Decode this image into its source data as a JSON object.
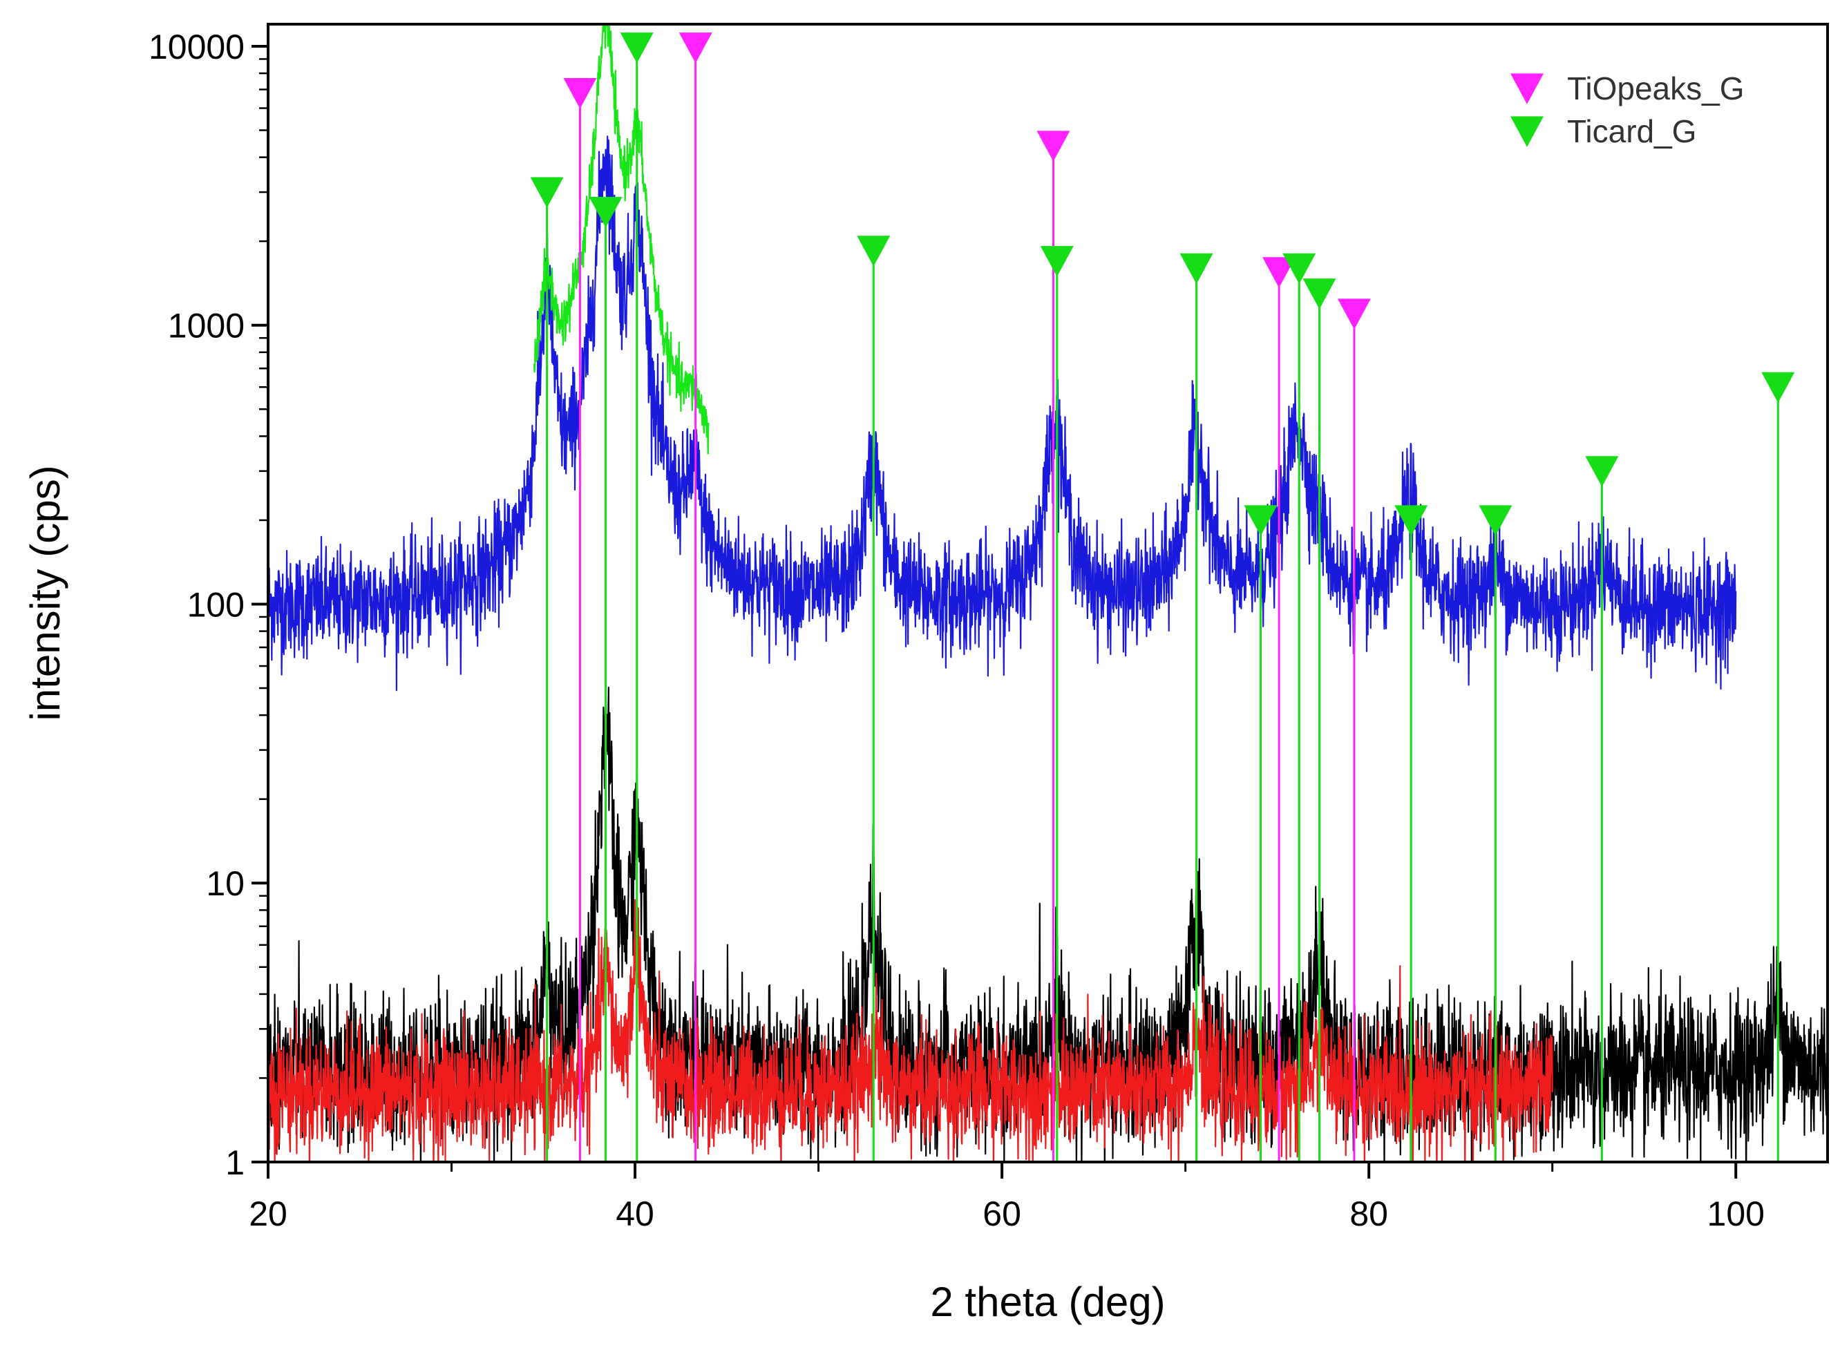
{
  "chart_data": {
    "type": "line",
    "title": "",
    "xlabel": "2 theta (deg)",
    "ylabel": "intensity (cps)",
    "xlim": [
      20,
      105
    ],
    "ylim": [
      1,
      12000
    ],
    "yscale": "log",
    "x_ticks": [
      20,
      40,
      60,
      80,
      100
    ],
    "x_minor_ticks": [
      30,
      50,
      70,
      90
    ],
    "y_ticks": [
      1,
      10,
      100,
      1000,
      10000
    ],
    "grid": false,
    "legend_position": "top-right",
    "colors": {
      "blue": "#1a1adc",
      "green": "#19e619",
      "black": "#000000",
      "red": "#ee1c1c",
      "magenta": "#ff22ff",
      "marker_green": "#16dd16"
    },
    "series": [
      {
        "name": "blue pattern",
        "color": "#1a1adc",
        "x_range": [
          20,
          100
        ],
        "baseline": 95,
        "noise": 0.22,
        "peaks": [
          [
            35.2,
            1250,
            0.35
          ],
          [
            36.6,
            120,
            0.4
          ],
          [
            38.4,
            3800,
            0.45
          ],
          [
            40.1,
            2100,
            0.45
          ],
          [
            43.2,
            240,
            0.4
          ],
          [
            53.0,
            310,
            0.45
          ],
          [
            62.9,
            450,
            0.5
          ],
          [
            70.6,
            380,
            0.55
          ],
          [
            76.1,
            430,
            0.6
          ],
          [
            77.3,
            140,
            0.45
          ],
          [
            82.2,
            240,
            0.5
          ],
          [
            86.9,
            130,
            0.6
          ],
          [
            92.7,
            140,
            0.6
          ]
        ]
      },
      {
        "name": "green pattern",
        "color": "#19e619",
        "x_range": [
          34.5,
          44
        ],
        "baseline": 250,
        "noise": 0.1,
        "peaks": [
          [
            35.2,
            1250,
            0.45
          ],
          [
            36.7,
            480,
            0.5
          ],
          [
            38.4,
            12000,
            0.45
          ],
          [
            40.1,
            4300,
            0.5
          ],
          [
            43.2,
            390,
            0.5
          ]
        ]
      },
      {
        "name": "black pattern",
        "color": "#000000",
        "x_range": [
          20,
          105
        ],
        "baseline": 2.1,
        "noise": 0.3,
        "peaks": [
          [
            35.2,
            5,
            0.25
          ],
          [
            38.4,
            35,
            0.3
          ],
          [
            40.1,
            16,
            0.3
          ],
          [
            53.0,
            8,
            0.3
          ],
          [
            62.9,
            4,
            0.3
          ],
          [
            70.6,
            8,
            0.3
          ],
          [
            76.1,
            3,
            0.3
          ],
          [
            77.3,
            6,
            0.3
          ],
          [
            102.3,
            3.5,
            0.4
          ]
        ]
      },
      {
        "name": "red pattern",
        "color": "#ee1c1c",
        "x_range": [
          20,
          90
        ],
        "baseline": 1.8,
        "noise": 0.24,
        "peaks": [
          [
            38.4,
            5,
            0.3
          ],
          [
            40.1,
            5.5,
            0.3
          ],
          [
            53.0,
            2.8,
            0.3
          ],
          [
            70.6,
            3,
            0.3
          ],
          [
            77.3,
            2.8,
            0.3
          ]
        ]
      }
    ],
    "reference_markers": [
      {
        "name": "TiOpeaks_G",
        "color": "#ff22ff",
        "points": [
          [
            37.0,
            6800
          ],
          [
            43.3,
            9900
          ],
          [
            62.8,
            4400
          ],
          [
            75.1,
            1550
          ],
          [
            79.2,
            1100
          ]
        ]
      },
      {
        "name": "Ticard_G",
        "color": "#16dd16",
        "points": [
          [
            35.2,
            3000
          ],
          [
            38.4,
            2550
          ],
          [
            40.1,
            9900
          ],
          [
            53.0,
            1850
          ],
          [
            63.0,
            1700
          ],
          [
            70.6,
            1600
          ],
          [
            74.1,
            200
          ],
          [
            76.2,
            1600
          ],
          [
            77.3,
            1300
          ],
          [
            82.3,
            200
          ],
          [
            86.9,
            200
          ],
          [
            92.7,
            300
          ],
          [
            102.3,
            600
          ]
        ]
      }
    ]
  }
}
